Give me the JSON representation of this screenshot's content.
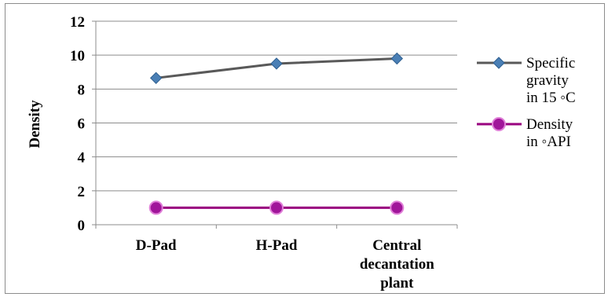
{
  "chart_data": {
    "type": "line",
    "title": "",
    "xlabel": "",
    "ylabel": "Density",
    "categories": [
      [
        "D-Pad"
      ],
      [
        "H-Pad"
      ],
      [
        "Central",
        "decantation",
        "plant"
      ]
    ],
    "ylim": [
      0,
      12
    ],
    "yticks": [
      0,
      2,
      4,
      6,
      8,
      10,
      12
    ],
    "grid": true,
    "legend_position": "right",
    "series": [
      {
        "name_lines": [
          "Specific",
          "gravity",
          "in 15 ◦C"
        ],
        "values": [
          8.65,
          9.5,
          9.8
        ],
        "color": "#595959",
        "marker_color": "#4a7fb5",
        "marker": "diamond"
      },
      {
        "name_lines": [
          "Density",
          "in ◦API"
        ],
        "values": [
          1.0,
          1.0,
          1.0
        ],
        "color": "#99007f",
        "marker_color": "#a0159a",
        "marker": "circle"
      }
    ]
  }
}
